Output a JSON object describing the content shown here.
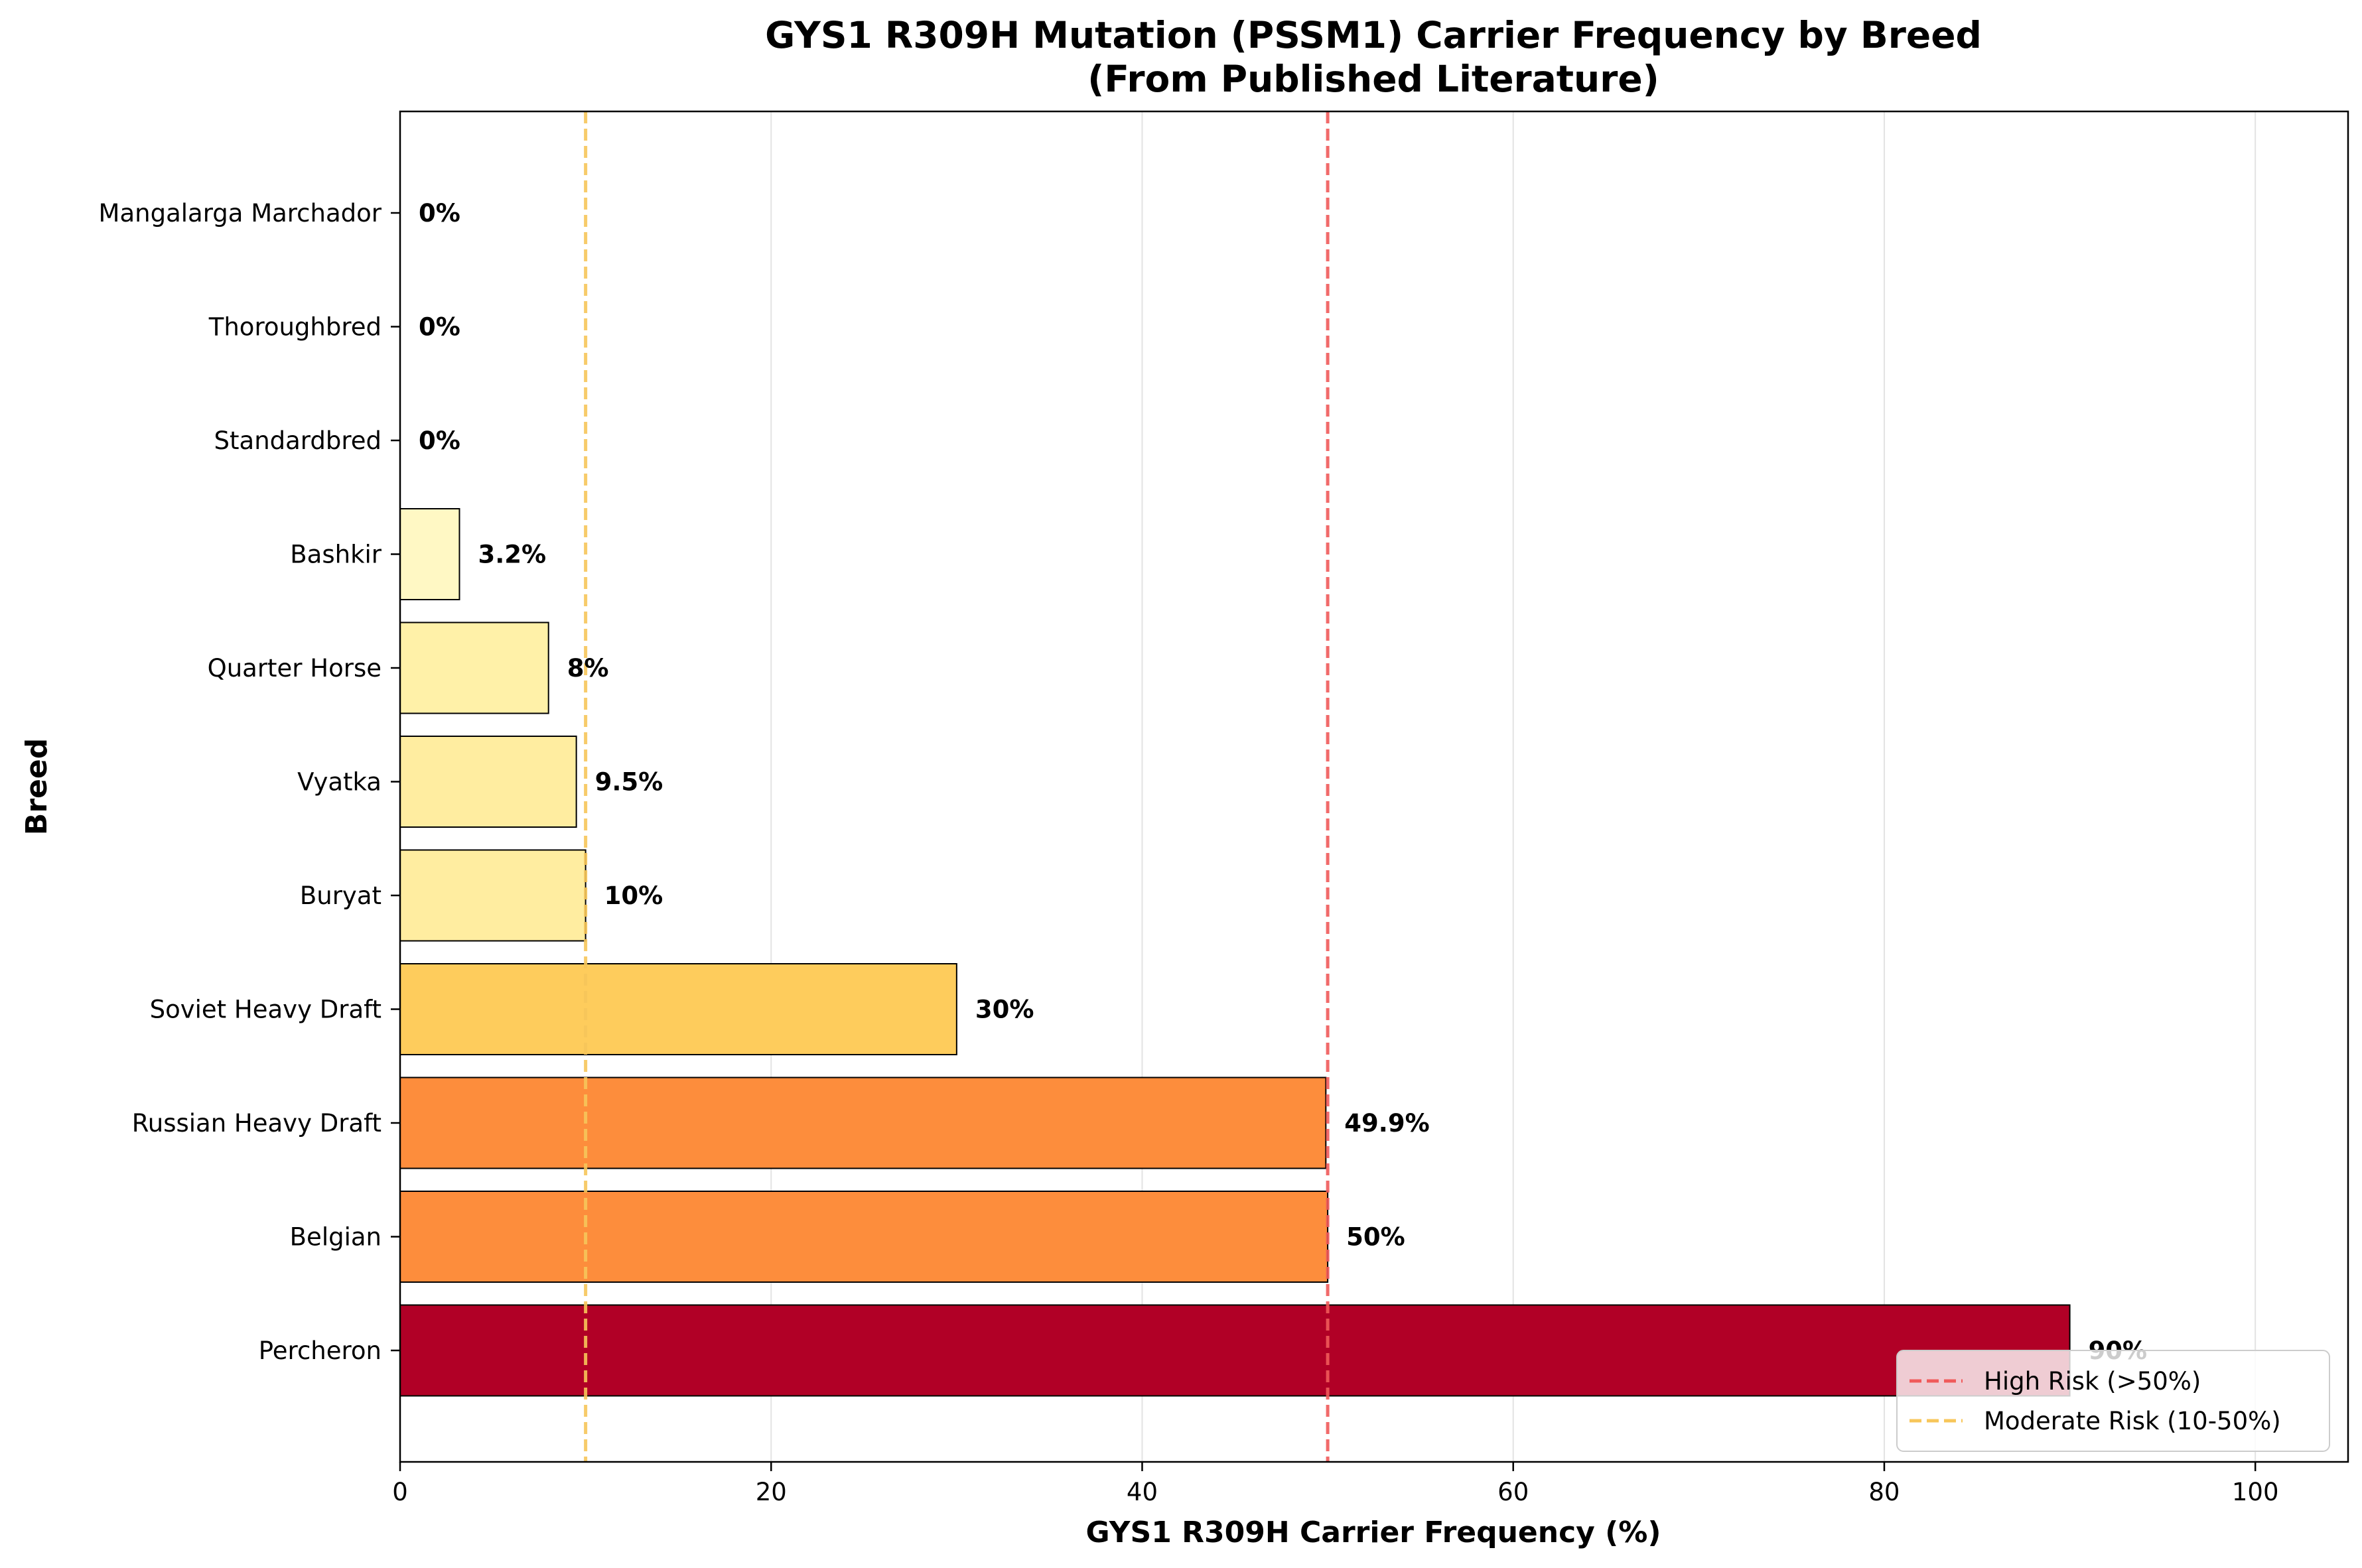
{
  "chart_data": {
    "type": "bar",
    "orientation": "horizontal",
    "title": "GYS1 R309H Mutation (PSSM1) Carrier Frequency by Breed",
    "subtitle": "(From Published Literature)",
    "xlabel": "GYS1 R309H Carrier Frequency (%)",
    "ylabel": "Breed",
    "xlim": [
      0,
      105
    ],
    "xticks": [
      0,
      20,
      40,
      60,
      80,
      100
    ],
    "grid": "vertical",
    "legend_position": "bottom-right",
    "categories": [
      "Percheron",
      "Belgian",
      "Russian Heavy Draft",
      "Soviet Heavy Draft",
      "Buryat",
      "Vyatka",
      "Quarter Horse",
      "Bashkir",
      "Standardbred",
      "Thoroughbred",
      "Mangalarga Marchador"
    ],
    "values": [
      90,
      50,
      49.9,
      30,
      10,
      9.5,
      8,
      3.2,
      0,
      0,
      0
    ],
    "data_labels": [
      "90%",
      "50%",
      "49.9%",
      "30%",
      "10%",
      "9.5%",
      "8%",
      "3.2%",
      "0%",
      "0%",
      "0%"
    ],
    "bar_colors": [
      "#b10026",
      "#fd8d3c",
      "#fd8d3c",
      "#fecc5c",
      "#ffeda0",
      "#ffeda0",
      "#fff1a8",
      "#fff8c4",
      "#ffffcc",
      "#ffffcc",
      "#ffffcc"
    ],
    "reference_lines": [
      {
        "label": "High Risk (>50%)",
        "x": 50,
        "color": "#f05a5a"
      },
      {
        "label": "Moderate Risk (10-50%)",
        "x": 10,
        "color": "#f7c65a"
      }
    ]
  }
}
